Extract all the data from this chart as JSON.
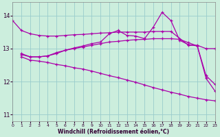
{
  "xlabel": "Windchill (Refroidissement éolien,°C)",
  "background_color": "#cceedd",
  "grid_color": "#99cccc",
  "line_color": "#aa00aa",
  "xlim": [
    0,
    23
  ],
  "ylim": [
    10.8,
    14.4
  ],
  "yticks": [
    11,
    12,
    13,
    14
  ],
  "xticks": [
    0,
    1,
    2,
    3,
    4,
    5,
    6,
    7,
    8,
    9,
    10,
    11,
    12,
    13,
    14,
    15,
    16,
    17,
    18,
    19,
    20,
    21,
    22,
    23
  ],
  "curves": [
    {
      "x": [
        0,
        1,
        2,
        3,
        4,
        5,
        6,
        7,
        8,
        9,
        10,
        11,
        12,
        13,
        14,
        15,
        16,
        17,
        18,
        20,
        21,
        22,
        23
      ],
      "y": [
        13.85,
        13.55,
        13.45,
        13.4,
        13.38,
        13.38,
        13.4,
        13.42,
        13.43,
        13.45,
        13.47,
        13.48,
        13.5,
        13.5,
        13.5,
        13.5,
        13.52,
        13.52,
        13.52,
        13.1,
        13.1,
        13.0,
        13.0
      ]
    },
    {
      "x": [
        1,
        2,
        3,
        4,
        5,
        6,
        7,
        8,
        9,
        10,
        11,
        12,
        13,
        14,
        15,
        16,
        17,
        18,
        19,
        20,
        21,
        22,
        23
      ],
      "y": [
        12.82,
        12.75,
        12.75,
        12.78,
        12.88,
        12.95,
        13.02,
        13.08,
        13.15,
        13.2,
        13.45,
        13.55,
        13.4,
        13.38,
        13.3,
        13.65,
        14.1,
        13.85,
        13.25,
        13.12,
        13.08,
        12.1,
        11.72
      ]
    },
    {
      "x": [
        1,
        2,
        3,
        4,
        5,
        6,
        7,
        8,
        9,
        10,
        11,
        12,
        13,
        14,
        15,
        16,
        17,
        18,
        19,
        20,
        21,
        22,
        23
      ],
      "y": [
        12.85,
        12.75,
        12.75,
        12.78,
        12.85,
        12.95,
        13.0,
        13.05,
        13.1,
        13.15,
        13.2,
        13.22,
        13.25,
        13.27,
        13.28,
        13.3,
        13.3,
        13.3,
        13.28,
        13.18,
        13.08,
        12.18,
        11.92
      ]
    },
    {
      "x": [
        1,
        2,
        3,
        4,
        5,
        6,
        7,
        8,
        9,
        10,
        11,
        12,
        13,
        14,
        15,
        16,
        17,
        18,
        19,
        20,
        21,
        22,
        23
      ],
      "y": [
        12.75,
        12.65,
        12.62,
        12.58,
        12.52,
        12.48,
        12.42,
        12.38,
        12.32,
        12.25,
        12.18,
        12.12,
        12.05,
        11.98,
        11.9,
        11.82,
        11.75,
        11.68,
        11.62,
        11.55,
        11.5,
        11.45,
        11.42
      ]
    }
  ]
}
